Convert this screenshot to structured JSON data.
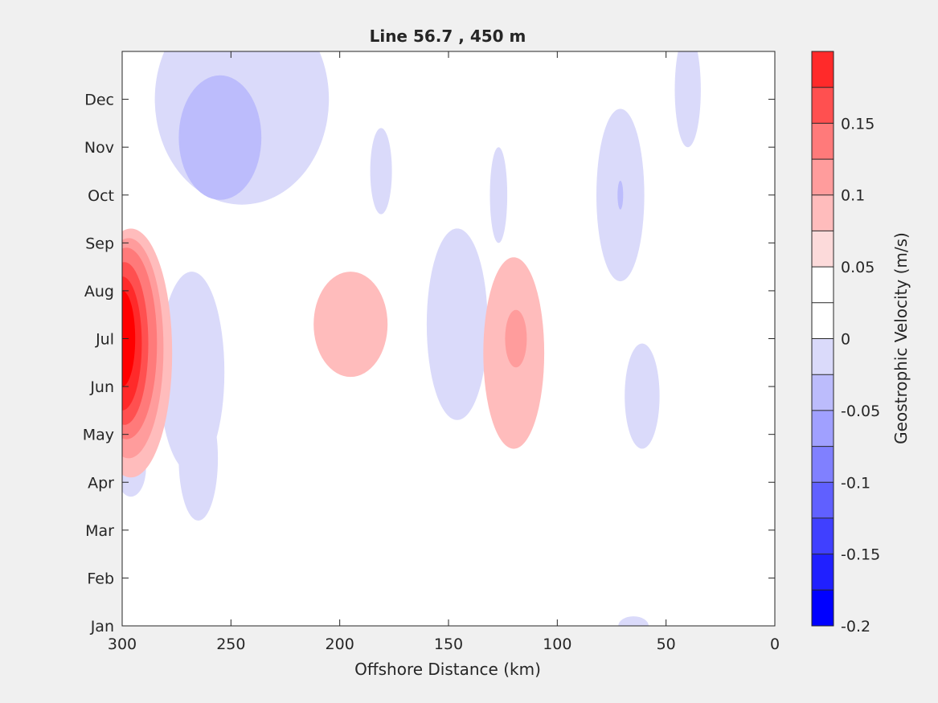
{
  "chart_data": {
    "type": "heatmap",
    "subtype": "filled-contour",
    "title": "Line 56.7 , 450 m",
    "xlabel": "Offshore Distance (km)",
    "ylabel": "",
    "xlim": [
      300,
      0
    ],
    "x_reversed": true,
    "x_ticks": [
      300,
      250,
      200,
      150,
      100,
      50,
      0
    ],
    "y_categories": [
      "Jan",
      "Feb",
      "Mar",
      "Apr",
      "May",
      "Jun",
      "Jul",
      "Aug",
      "Sep",
      "Oct",
      "Nov",
      "Dec"
    ],
    "grid": false,
    "colorbar": {
      "label": "Geostrophic Velocity (m/s)",
      "range": [
        -0.2,
        0.2
      ],
      "step": 0.025,
      "tick_values": [
        0.15,
        0.1,
        0.05,
        0,
        -0.05,
        -0.1,
        -0.15,
        -0.2
      ],
      "tick_labels": [
        "0.15",
        "0.1",
        "0.05",
        "0",
        "-0.05",
        "-0.1",
        "-0.15",
        "-0.2"
      ],
      "colors": [
        "#0000ff",
        "#2020ff",
        "#4040ff",
        "#6060ff",
        "#8080ff",
        "#a0a0ff",
        "#bcbcfc",
        "#dadafa",
        "#ffffff",
        "#ffffff",
        "#fcdada",
        "#ffbcbc",
        "#ff9c9c",
        "#ff7a7a",
        "#ff5050",
        "#ff2a2a",
        "#ff0000"
      ]
    },
    "features": [
      {
        "x": 300,
        "month": 6.0,
        "value": 0.2,
        "rx_km": 6,
        "ry_month": 1.0
      },
      {
        "x": 300,
        "month": 5.9,
        "value": 0.175,
        "rx_km": 9,
        "ry_month": 1.4
      },
      {
        "x": 299,
        "month": 5.9,
        "value": 0.15,
        "rx_km": 11,
        "ry_month": 1.7
      },
      {
        "x": 298,
        "month": 5.9,
        "value": 0.125,
        "rx_km": 14,
        "ry_month": 2.0
      },
      {
        "x": 297,
        "month": 5.8,
        "value": 0.1,
        "rx_km": 16,
        "ry_month": 2.3
      },
      {
        "x": 296,
        "month": 5.7,
        "value": 0.075,
        "rx_km": 19,
        "ry_month": 2.6
      },
      {
        "x": 286,
        "month": 7.9,
        "value": 0.025,
        "rx_km": 10,
        "ry_month": 2.8
      },
      {
        "x": 291,
        "month": 1.5,
        "value": 0.025,
        "rx_km": 10,
        "ry_month": 1.3
      },
      {
        "x": 246,
        "month": 12.9,
        "value": 0.025,
        "rx_km": 6,
        "ry_month": 0.7
      },
      {
        "x": 183,
        "month": 12.6,
        "value": 0.025,
        "rx_km": 8,
        "ry_month": 1.2
      },
      {
        "x": 194,
        "month": 6.2,
        "value": 0.025,
        "rx_km": 32,
        "ry_month": 2.5
      },
      {
        "x": 195,
        "month": 6.3,
        "value": 0.075,
        "rx_km": 17,
        "ry_month": 1.1
      },
      {
        "x": 119,
        "month": 5.4,
        "value": 0.025,
        "rx_km": 24,
        "ry_month": 2.9
      },
      {
        "x": 135,
        "month": 4.0,
        "value": 0.025,
        "rx_km": 15,
        "ry_month": 0.6
      },
      {
        "x": 120,
        "month": 5.7,
        "value": 0.075,
        "rx_km": 14,
        "ry_month": 2.0
      },
      {
        "x": 119,
        "month": 6.0,
        "value": 0.1,
        "rx_km": 5,
        "ry_month": 0.6
      },
      {
        "x": 142,
        "month": 11.5,
        "value": 0.025,
        "rx_km": 15,
        "ry_month": 1.2
      },
      {
        "x": 158,
        "month": 9.5,
        "value": 0.025,
        "rx_km": 10,
        "ry_month": 1.0
      },
      {
        "x": 186,
        "month": 1.0,
        "value": 0.025,
        "rx_km": 16,
        "ry_month": 1.0
      },
      {
        "x": 249,
        "month": 0.2,
        "value": 0.025,
        "rx_km": 6,
        "ry_month": 0.3
      },
      {
        "x": 67,
        "month": 2.7,
        "value": 0.025,
        "rx_km": 14,
        "ry_month": 1.3
      },
      {
        "x": 36,
        "month": 4.5,
        "value": 0.025,
        "rx_km": 4,
        "ry_month": 0.8
      },
      {
        "x": 300,
        "month": 13.0,
        "value": 0.025,
        "rx_km": 8,
        "ry_month": 0.15
      },
      {
        "x": 245,
        "month": 11.0,
        "value": -0.025,
        "rx_km": 40,
        "ry_month": 2.2
      },
      {
        "x": 255,
        "month": 10.2,
        "value": -0.05,
        "rx_km": 19,
        "ry_month": 1.3
      },
      {
        "x": 268,
        "month": 5.3,
        "value": -0.025,
        "rx_km": 15,
        "ry_month": 2.1
      },
      {
        "x": 265,
        "month": 3.5,
        "value": -0.025,
        "rx_km": 9,
        "ry_month": 1.3
      },
      {
        "x": 296,
        "month": 3.3,
        "value": -0.025,
        "rx_km": 7,
        "ry_month": 0.6
      },
      {
        "x": 181,
        "month": 9.5,
        "value": -0.025,
        "rx_km": 5,
        "ry_month": 0.9
      },
      {
        "x": 146,
        "month": 6.3,
        "value": -0.025,
        "rx_km": 14,
        "ry_month": 2.0
      },
      {
        "x": 127,
        "month": 9.0,
        "value": -0.025,
        "rx_km": 4,
        "ry_month": 1.0
      },
      {
        "x": 71,
        "month": 9.0,
        "value": -0.025,
        "rx_km": 11,
        "ry_month": 1.8
      },
      {
        "x": 71,
        "month": 9.0,
        "value": -0.05,
        "rx_km": 1.3,
        "ry_month": 0.3
      },
      {
        "x": 61,
        "month": 4.8,
        "value": -0.025,
        "rx_km": 8,
        "ry_month": 1.1
      },
      {
        "x": 40,
        "month": 11.2,
        "value": -0.025,
        "rx_km": 6,
        "ry_month": 1.2
      },
      {
        "x": 66,
        "month": 13.0,
        "value": -0.025,
        "rx_km": 10,
        "ry_month": 0.8
      },
      {
        "x": 65,
        "month": 0.0,
        "value": -0.025,
        "rx_km": 7,
        "ry_month": 0.2
      }
    ]
  }
}
